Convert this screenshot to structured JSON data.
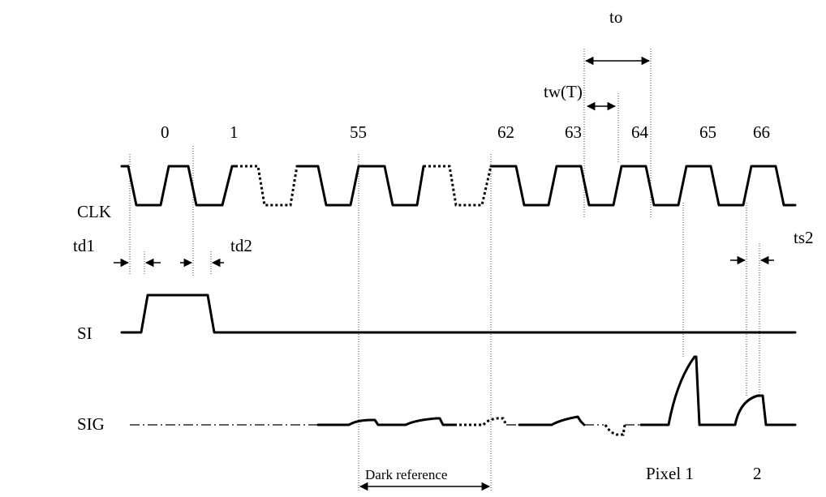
{
  "signals": {
    "clk": "CLK",
    "si": "SI",
    "sig": "SIG"
  },
  "clock_numbers": [
    "0",
    "1",
    "55",
    "62",
    "63",
    "64",
    "65",
    "66"
  ],
  "timing": {
    "to": "to",
    "tw": "tw(T)",
    "td1": "td1",
    "td2": "td2",
    "ts2": "ts2"
  },
  "annotations": {
    "dark_reference": "Dark reference",
    "pixel1": "Pixel 1",
    "pixel2": "2"
  }
}
